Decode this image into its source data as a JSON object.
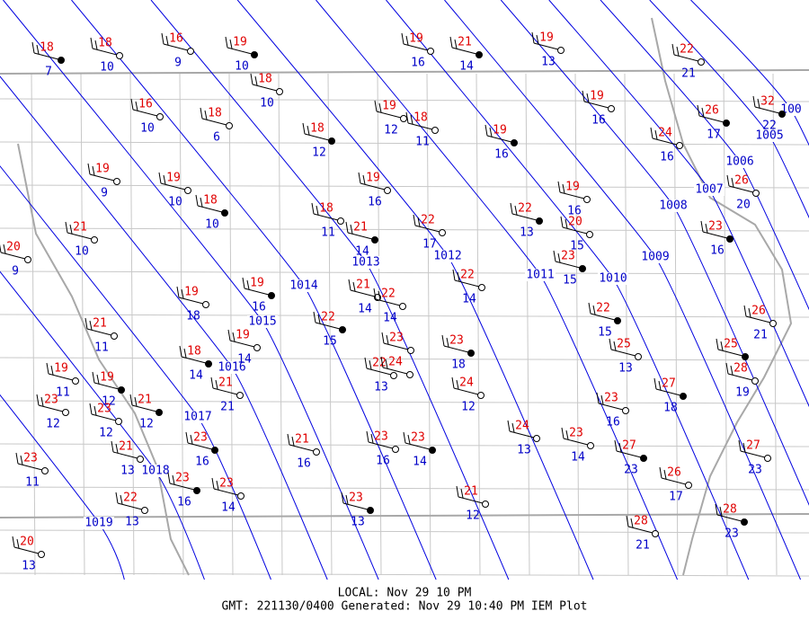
{
  "stations": [
    {
      "temp": 18,
      "dew": 7
    },
    {
      "temp": 18,
      "dew": 10
    },
    {
      "temp": 16,
      "dew": 9
    },
    {
      "temp": 19,
      "dew": 10
    },
    {
      "temp": 18,
      "dew": 10
    },
    {
      "temp": 19,
      "dew": 16
    },
    {
      "temp": 21,
      "dew": 14
    },
    {
      "temp": 19,
      "dew": 13
    },
    {
      "temp": 22,
      "dew": 21
    },
    {
      "temp": 32,
      "dew": 22
    },
    {
      "temp": 16,
      "dew": 10
    },
    {
      "temp": 18,
      "dew": 6
    },
    {
      "temp": 18,
      "dew": 12
    },
    {
      "temp": 19,
      "dew": 12
    },
    {
      "temp": 18,
      "dew": 11
    },
    {
      "temp": 19,
      "dew": 16
    },
    {
      "temp": 19,
      "dew": 16
    },
    {
      "temp": 24,
      "dew": 16
    },
    {
      "temp": 26,
      "dew": 17
    },
    {
      "temp": 19,
      "dew": 9
    },
    {
      "temp": 19,
      "dew": 10
    },
    {
      "temp": 18,
      "dew": 10
    },
    {
      "temp": 19,
      "dew": 16
    },
    {
      "temp": 19,
      "dew": 16
    },
    {
      "temp": 22,
      "dew": 13
    },
    {
      "temp": 22,
      "dew": 17
    },
    {
      "temp": 18,
      "dew": 11
    },
    {
      "temp": 21,
      "dew": 14
    },
    {
      "temp": 20,
      "dew": 15
    },
    {
      "temp": 26,
      "dew": 20
    },
    {
      "temp": 23,
      "dew": 16
    },
    {
      "temp": 21,
      "dew": 10
    },
    {
      "temp": 20,
      "dew": 9
    },
    {
      "temp": 23,
      "dew": 15
    },
    {
      "temp": 22,
      "dew": 14
    },
    {
      "temp": 19,
      "dew": 18
    },
    {
      "temp": 19,
      "dew": 16
    },
    {
      "temp": 21,
      "dew": 14
    },
    {
      "temp": 22,
      "dew": 14
    },
    {
      "temp": 22,
      "dew": 15
    },
    {
      "temp": 21,
      "dew": 11
    },
    {
      "temp": 19,
      "dew": 14
    },
    {
      "temp": 22,
      "dew": 15
    },
    {
      "temp": 26,
      "dew": 21
    },
    {
      "temp": 25,
      "dew": 13
    },
    {
      "temp": 25
    },
    {
      "temp": 28,
      "dew": 19
    },
    {
      "temp": 23
    },
    {
      "temp": 23,
      "dew": 18
    },
    {
      "temp": 22,
      "dew": 13
    },
    {
      "temp": 24
    },
    {
      "temp": 18,
      "dew": 14
    },
    {
      "temp": 21,
      "dew": 21
    },
    {
      "temp": 24,
      "dew": 12
    },
    {
      "temp": 27,
      "dew": 18
    },
    {
      "temp": 23,
      "dew": 16
    },
    {
      "temp": 19,
      "dew": 11
    },
    {
      "temp": 19,
      "dew": 12
    },
    {
      "temp": 23,
      "dew": 12
    },
    {
      "temp": 23,
      "dew": 12
    },
    {
      "temp": 21,
      "dew": 12
    },
    {
      "temp": 23,
      "dew": 11
    },
    {
      "temp": 21,
      "dew": 13
    },
    {
      "temp": 23,
      "dew": 16
    },
    {
      "temp": 21,
      "dew": 16
    },
    {
      "temp": 23,
      "dew": 16
    },
    {
      "temp": 23,
      "dew": 14
    },
    {
      "temp": 24,
      "dew": 13
    },
    {
      "temp": 23,
      "dew": 14
    },
    {
      "temp": 27,
      "dew": 23
    },
    {
      "temp": 27,
      "dew": 23
    },
    {
      "temp": 26,
      "dew": 17
    },
    {
      "temp": 23,
      "dew": 16
    },
    {
      "temp": 23,
      "dew": 14
    },
    {
      "temp": 22,
      "dew": 13
    },
    {
      "temp": 23,
      "dew": 13
    },
    {
      "temp": 21,
      "dew": 12
    },
    {
      "temp": 28,
      "dew": 21
    },
    {
      "temp": 28,
      "dew": 23
    },
    {
      "temp": 20,
      "dew": 13
    }
  ],
  "isobars": [
    "1005",
    "100",
    "1006",
    "1007",
    "1008",
    "1009",
    "1010",
    "1011",
    "1012",
    "1013",
    "1014",
    "1015",
    "1016",
    "1017",
    "1018",
    "1019"
  ],
  "footer": {
    "local": "LOCAL: Nov 29 10 PM",
    "gmt": "GMT: 221130/0400 Generated: Nov 29 10:40 PM IEM Plot"
  }
}
